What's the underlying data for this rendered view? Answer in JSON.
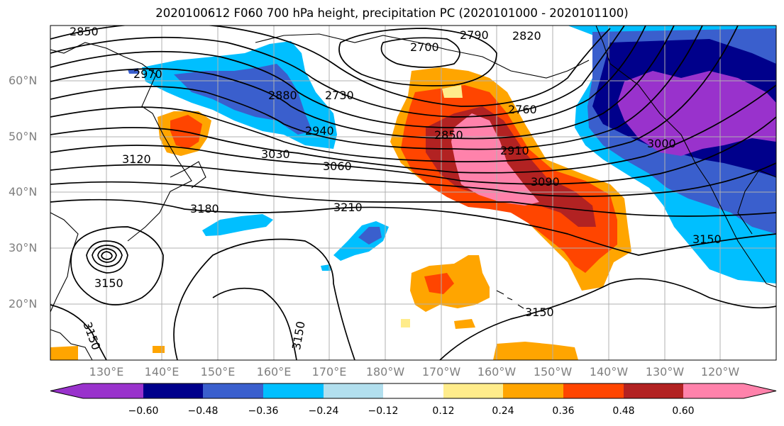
{
  "title": "2020100612 F060 700 hPa height, precipitation PC (2020101000 - 2020101100)",
  "lat_labels": [
    "60°N",
    "50°N",
    "40°N",
    "30°N",
    "20°N"
  ],
  "lon_labels": [
    "130°E",
    "140°E",
    "150°E",
    "160°E",
    "170°E",
    "180°W",
    "170°W",
    "160°W",
    "150°W",
    "140°W",
    "130°W",
    "120°W"
  ],
  "colorbar": {
    "ticks": [
      "−0.60",
      "−0.48",
      "−0.36",
      "−0.24",
      "−0.12",
      "0.12",
      "0.24",
      "0.36",
      "0.48",
      "0.60"
    ],
    "colors": [
      "#9932CC",
      "#00008B",
      "#3A5FCD",
      "#00BFFF",
      "#B2DFEE",
      "#FFFFFF",
      "#FFEC8B",
      "#FFA500",
      "#FF4500",
      "#B22222",
      "#FF82AB"
    ]
  },
  "contour_labels": [
    "2850",
    "2790",
    "2820",
    "2700",
    "2970",
    "2880",
    "2730",
    "2760",
    "2940",
    "2850",
    "2910",
    "3030",
    "3060",
    "3120",
    "3090",
    "3180",
    "3210",
    "3150",
    "3150",
    "3150",
    "3150",
    "3150",
    "3000"
  ]
}
